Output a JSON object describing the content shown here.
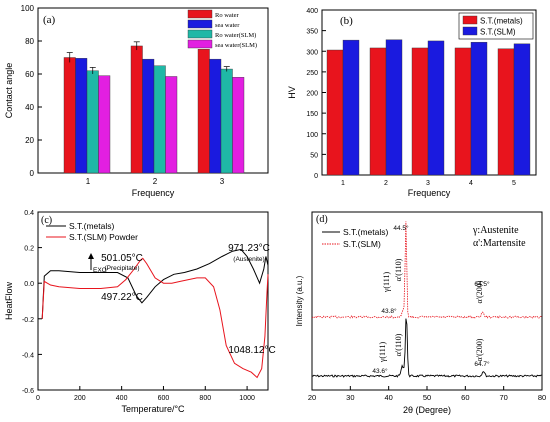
{
  "chart_data": [
    {
      "panel": "(a)",
      "type": "bar",
      "xlabel": "Frequency",
      "ylabel": "Contact angle",
      "categories": [
        "1",
        "2",
        "3"
      ],
      "ylim": [
        0,
        100
      ],
      "yticks": [
        0,
        20,
        40,
        60,
        80,
        100
      ],
      "legend_position": "top-right",
      "series": [
        {
          "name": "Ro water",
          "values": [
            70,
            77,
            75
          ],
          "errors": [
            3,
            2.5,
            0
          ],
          "color": "#e8141d"
        },
        {
          "name": "sea water",
          "values": [
            69.5,
            69,
            69
          ],
          "errors": [
            0,
            0,
            0
          ],
          "color": "#1a1adf"
        },
        {
          "name": "Ro water(SLM)",
          "values": [
            62,
            65,
            63
          ],
          "errors": [
            2,
            0,
            1.5
          ],
          "color": "#1fb8a6"
        },
        {
          "name": "sea water(SLM)",
          "values": [
            59,
            58.5,
            58
          ],
          "errors": [
            0,
            0,
            0
          ],
          "color": "#e21fe1"
        }
      ]
    },
    {
      "panel": "(b)",
      "type": "bar",
      "xlabel": "Frequency",
      "ylabel": "HV",
      "categories": [
        "1",
        "2",
        "3",
        "4",
        "5"
      ],
      "ylim": [
        0,
        400
      ],
      "yticks": [
        0,
        50,
        100,
        150,
        200,
        250,
        300,
        350,
        400
      ],
      "legend_position": "top-right",
      "series": [
        {
          "name": "S.T.(metals)",
          "values": [
            303,
            308,
            308,
            308,
            306
          ],
          "color": "#e8141d"
        },
        {
          "name": "S.T.(SLM)",
          "values": [
            327,
            328,
            325,
            322,
            318
          ],
          "color": "#1a1adf"
        }
      ]
    },
    {
      "panel": "(c)",
      "type": "line",
      "xlabel": "Temperature/°C",
      "ylabel": "HeatFlow",
      "xlim": [
        0,
        1100
      ],
      "ylim": [
        -0.6,
        0.4
      ],
      "xticks": [
        0,
        200,
        400,
        600,
        800,
        1000
      ],
      "yticks": [
        -0.6,
        -0.4,
        -0.2,
        0.0,
        0.2,
        0.4
      ],
      "legend_position": "top-left",
      "exo_label": "EXO",
      "series": [
        {
          "name": "S.T.(metals)",
          "color": "#000000",
          "x": [
            20,
            30,
            60,
            100,
            200,
            300,
            380,
            430,
            470,
            497,
            520,
            560,
            600,
            650,
            700,
            760,
            820,
            880,
            930,
            971,
            1000,
            1030,
            1060,
            1080,
            1090,
            1100
          ],
          "y": [
            -0.2,
            0.04,
            0.07,
            0.07,
            0.06,
            0.06,
            0.06,
            0.03,
            -0.07,
            -0.11,
            -0.08,
            -0.02,
            0.02,
            0.05,
            0.06,
            0.08,
            0.11,
            0.15,
            0.18,
            0.19,
            0.15,
            0.08,
            0.0,
            0.08,
            0.15,
            0.1
          ]
        },
        {
          "name": "S.T.(SLM) Powder",
          "color": "#e8141d",
          "x": [
            20,
            30,
            60,
            100,
            200,
            300,
            380,
            420,
            460,
            490,
            501,
            520,
            560,
            600,
            640,
            680,
            720,
            760,
            800,
            840,
            870,
            900,
            940,
            980,
            1020,
            1048,
            1070,
            1085,
            1095,
            1100
          ],
          "y": [
            -0.2,
            0.01,
            -0.01,
            -0.02,
            -0.03,
            -0.03,
            -0.02,
            0.02,
            0.08,
            0.13,
            0.14,
            0.11,
            0.03,
            0.0,
            0.0,
            0.01,
            0.02,
            0.03,
            0.03,
            -0.02,
            -0.15,
            -0.35,
            -0.45,
            -0.48,
            -0.5,
            -0.53,
            -0.48,
            -0.3,
            -0.05,
            0.05
          ]
        }
      ],
      "annotations": [
        {
          "text": "971.23°C",
          "x": 971,
          "y": 0.19,
          "sub": "(Austenite)"
        },
        {
          "text": "501.05°C",
          "x": 501,
          "y": 0.14,
          "sub": "(Precipitate)"
        },
        {
          "text": "497.22°C",
          "x": 497,
          "y": -0.11,
          "sub": ""
        },
        {
          "text": "1048.12°C",
          "x": 1048,
          "y": -0.53,
          "sub": ""
        }
      ]
    },
    {
      "panel": "(d)",
      "type": "line",
      "xlabel": "2θ (Degree)",
      "ylabel": "Intensity (a.u.)",
      "xlim": [
        20,
        80
      ],
      "xticks": [
        20,
        30,
        40,
        50,
        60,
        70,
        80
      ],
      "legend_position": "top-left",
      "phase_labels": [
        "γ:Austenite",
        "α':Martensite"
      ],
      "series": [
        {
          "name": "S.T.(metals)",
          "color": "#000000",
          "style": "solid"
        },
        {
          "name": "S.T.(SLM)",
          "color": "#e8141d",
          "style": "dotted"
        }
      ],
      "peaks": [
        {
          "series": "S.T.(SLM)",
          "angle": "44.5°",
          "phase": "α'(110)",
          "x": 44.5
        },
        {
          "series": "S.T.(SLM)",
          "angle": "43.8°",
          "phase": "γ(111)",
          "x": 43.8
        },
        {
          "series": "S.T.(SLM)",
          "angle": "64.5°",
          "phase": "α'(200)",
          "x": 64.5
        },
        {
          "series": "S.T.(metals)",
          "angle": "43.6°",
          "phase": "γ(111)",
          "x": 43.6
        },
        {
          "series": "S.T.(metals)",
          "angle": "",
          "phase": "α'(110)",
          "x": 44.6
        },
        {
          "series": "S.T.(metals)",
          "angle": "64.7°",
          "phase": "α'(200)",
          "x": 64.7
        }
      ]
    }
  ]
}
